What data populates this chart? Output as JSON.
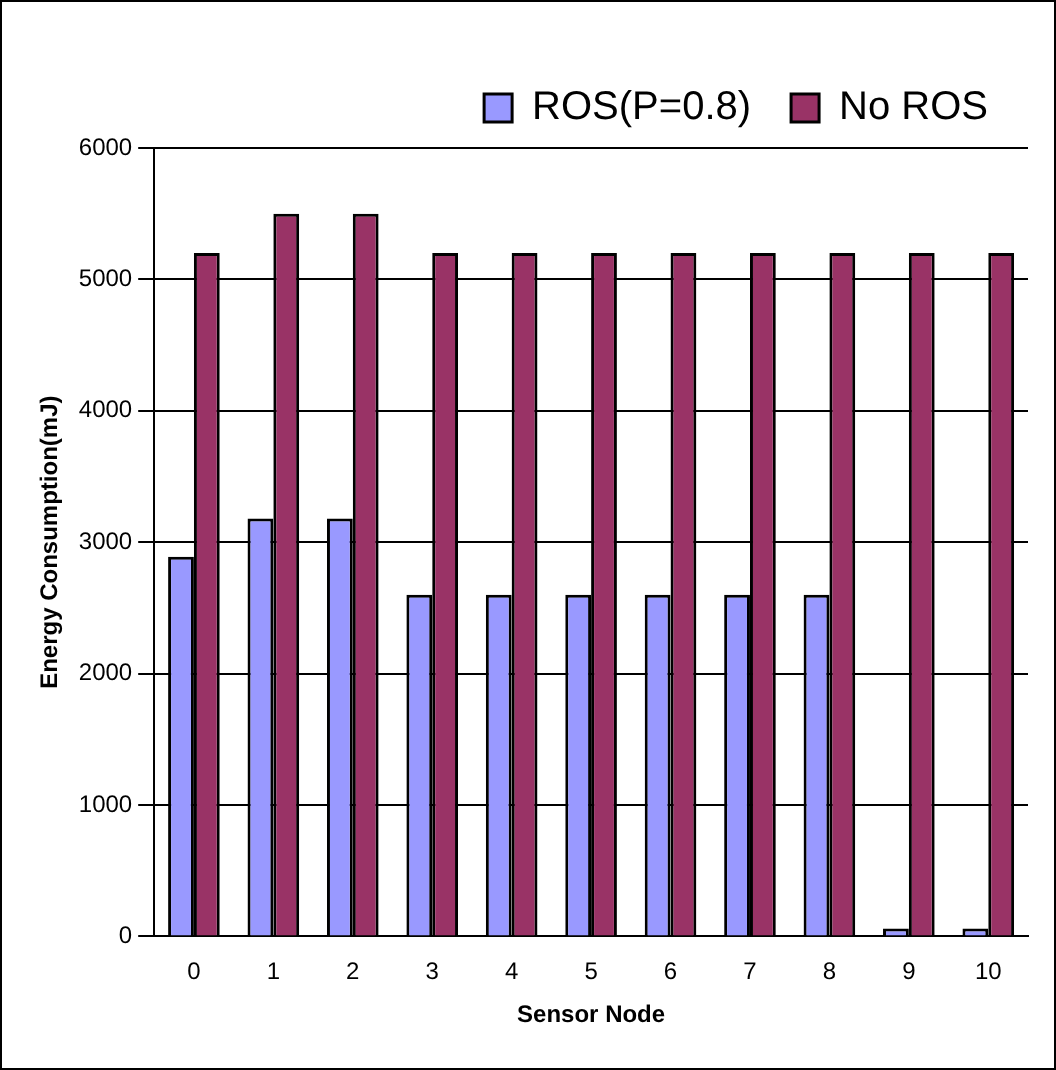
{
  "chart_data": {
    "type": "bar",
    "xlabel": "Sensor Node",
    "ylabel": "Energy Consumption(mJ)",
    "categories": [
      "0",
      "1",
      "2",
      "3",
      "4",
      "5",
      "6",
      "7",
      "8",
      "9",
      "10"
    ],
    "series": [
      {
        "name": "ROS(P=0.8)",
        "color": "#9999ff",
        "values": [
          2890,
          3180,
          3180,
          2600,
          2600,
          2600,
          2600,
          2600,
          2600,
          60,
          60
        ]
      },
      {
        "name": "No ROS",
        "color": "#993366",
        "values": [
          5200,
          5500,
          5500,
          5200,
          5200,
          5200,
          5200,
          5200,
          5200,
          5200,
          5200
        ]
      }
    ],
    "ylim": [
      0,
      6000
    ],
    "yticks": [
      0,
      1000,
      2000,
      3000,
      4000,
      5000,
      6000
    ],
    "grid": "y",
    "legend": "top right"
  }
}
